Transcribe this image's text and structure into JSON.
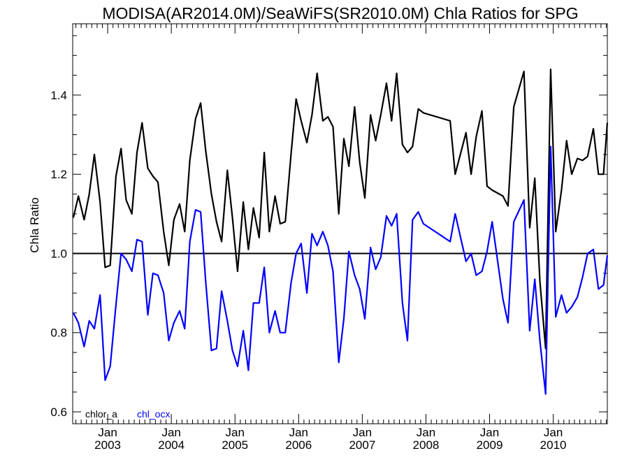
{
  "chart_data": {
    "type": "line",
    "title": "MODISA(AR2014.0M)/SeaWiFS(SR2010.0M)  Chla Ratios for SPG",
    "ylabel": "Chla Ratio",
    "xlabel": "",
    "xlim": [
      2002.45,
      2010.85
    ],
    "ylim": [
      0.57,
      1.58
    ],
    "yticks": [
      0.6,
      0.8,
      1.0,
      1.2,
      1.4
    ],
    "ytick_labels": [
      "0.6",
      "0.8",
      "1.0",
      "1.2",
      "1.4"
    ],
    "x_minor_ticks": "monthly",
    "x_major_ticks": [
      {
        "x": 2003.0,
        "label_top": "Jan",
        "label_bottom": "2003"
      },
      {
        "x": 2004.0,
        "label_top": "Jan",
        "label_bottom": "2004"
      },
      {
        "x": 2005.0,
        "label_top": "Jan",
        "label_bottom": "2005"
      },
      {
        "x": 2006.0,
        "label_top": "Jan",
        "label_bottom": "2006"
      },
      {
        "x": 2007.0,
        "label_top": "Jan",
        "label_bottom": "2007"
      },
      {
        "x": 2008.0,
        "label_top": "Jan",
        "label_bottom": "2008"
      },
      {
        "x": 2009.0,
        "label_top": "Jan",
        "label_bottom": "2009"
      },
      {
        "x": 2010.0,
        "label_top": "Jan",
        "label_bottom": "2010"
      }
    ],
    "reference_line": {
      "y": 1.0,
      "color": "#000000"
    },
    "legend_position": "bottom-left",
    "grid": false,
    "series": [
      {
        "name": "chlor_a",
        "color": "#000000",
        "x": [
          2002.46,
          2002.54,
          2002.63,
          2002.71,
          2002.79,
          2002.88,
          2002.96,
          2003.04,
          2003.13,
          2003.21,
          2003.29,
          2003.38,
          2003.46,
          2003.54,
          2003.63,
          2003.71,
          2003.79,
          2003.88,
          2003.96,
          2004.04,
          2004.13,
          2004.21,
          2004.29,
          2004.38,
          2004.46,
          2004.54,
          2004.63,
          2004.71,
          2004.79,
          2004.88,
          2004.96,
          2005.04,
          2005.13,
          2005.21,
          2005.29,
          2005.38,
          2005.46,
          2005.54,
          2005.63,
          2005.71,
          2005.79,
          2005.88,
          2005.96,
          2006.04,
          2006.13,
          2006.21,
          2006.29,
          2006.38,
          2006.46,
          2006.54,
          2006.63,
          2006.71,
          2006.79,
          2006.88,
          2006.96,
          2007.04,
          2007.13,
          2007.21,
          2007.29,
          2007.38,
          2007.46,
          2007.54,
          2007.63,
          2007.71,
          2007.79,
          2007.88,
          2007.96,
          2008.38,
          2008.46,
          2008.63,
          2008.71,
          2008.79,
          2008.88,
          2008.96,
          2009.04,
          2009.21,
          2009.29,
          2009.38,
          2009.54,
          2009.63,
          2009.71,
          2009.79,
          2009.88,
          2009.96,
          2010.04,
          2010.13,
          2010.21,
          2010.29,
          2010.38,
          2010.46,
          2010.54,
          2010.63,
          2010.71,
          2010.79,
          2010.85
        ],
        "values": [
          1.09,
          1.145,
          1.085,
          1.15,
          1.25,
          1.13,
          0.965,
          0.97,
          1.195,
          1.265,
          1.135,
          1.1,
          1.255,
          1.33,
          1.215,
          1.195,
          1.18,
          1.055,
          0.97,
          1.085,
          1.125,
          1.055,
          1.235,
          1.34,
          1.38,
          1.26,
          1.15,
          1.08,
          1.03,
          1.21,
          1.09,
          0.955,
          1.13,
          1.01,
          1.115,
          1.04,
          1.255,
          1.055,
          1.145,
          1.075,
          1.08,
          1.25,
          1.39,
          1.335,
          1.28,
          1.35,
          1.455,
          1.335,
          1.345,
          1.32,
          1.1,
          1.29,
          1.22,
          1.37,
          1.23,
          1.14,
          1.35,
          1.285,
          1.35,
          1.43,
          1.335,
          1.455,
          1.275,
          1.255,
          1.27,
          1.365,
          1.355,
          1.335,
          1.2,
          1.305,
          1.2,
          1.295,
          1.36,
          1.17,
          1.16,
          1.145,
          1.12,
          1.37,
          1.46,
          1.065,
          1.19,
          0.93,
          0.76,
          1.465,
          1.055,
          1.16,
          1.285,
          1.2,
          1.24,
          1.235,
          1.245,
          1.315,
          1.2,
          1.2,
          1.33
        ]
      },
      {
        "name": "chl_ocx",
        "color": "#0000ff",
        "x": [
          2002.46,
          2002.54,
          2002.63,
          2002.71,
          2002.79,
          2002.88,
          2002.96,
          2003.04,
          2003.13,
          2003.21,
          2003.29,
          2003.38,
          2003.46,
          2003.54,
          2003.63,
          2003.71,
          2003.79,
          2003.88,
          2003.96,
          2004.04,
          2004.13,
          2004.21,
          2004.29,
          2004.38,
          2004.46,
          2004.54,
          2004.63,
          2004.71,
          2004.79,
          2004.88,
          2004.96,
          2005.04,
          2005.13,
          2005.21,
          2005.29,
          2005.38,
          2005.46,
          2005.54,
          2005.63,
          2005.71,
          2005.79,
          2005.88,
          2005.96,
          2006.04,
          2006.13,
          2006.21,
          2006.29,
          2006.38,
          2006.46,
          2006.54,
          2006.63,
          2006.71,
          2006.79,
          2006.88,
          2006.96,
          2007.04,
          2007.13,
          2007.21,
          2007.29,
          2007.38,
          2007.46,
          2007.54,
          2007.63,
          2007.71,
          2007.79,
          2007.88,
          2007.96,
          2008.38,
          2008.46,
          2008.63,
          2008.71,
          2008.79,
          2008.88,
          2008.96,
          2009.04,
          2009.21,
          2009.29,
          2009.38,
          2009.54,
          2009.63,
          2009.71,
          2009.79,
          2009.88,
          2009.96,
          2010.04,
          2010.13,
          2010.21,
          2010.29,
          2010.38,
          2010.46,
          2010.54,
          2010.63,
          2010.71,
          2010.79,
          2010.85
        ],
        "values": [
          0.85,
          0.825,
          0.765,
          0.83,
          0.81,
          0.895,
          0.68,
          0.715,
          0.87,
          1.0,
          0.985,
          0.955,
          1.035,
          1.03,
          0.845,
          0.95,
          0.945,
          0.9,
          0.78,
          0.825,
          0.855,
          0.81,
          1.03,
          1.11,
          1.105,
          0.93,
          0.755,
          0.76,
          0.905,
          0.83,
          0.755,
          0.715,
          0.805,
          0.705,
          0.875,
          0.875,
          0.965,
          0.8,
          0.855,
          0.8,
          0.8,
          0.925,
          1.0,
          1.025,
          0.9,
          1.05,
          1.02,
          1.055,
          1.02,
          0.955,
          0.725,
          0.835,
          1.005,
          0.945,
          0.91,
          0.835,
          1.015,
          0.96,
          0.99,
          1.095,
          1.07,
          1.1,
          0.875,
          0.78,
          1.085,
          1.105,
          1.075,
          1.03,
          1.1,
          0.98,
          1.0,
          0.945,
          0.955,
          1.005,
          1.08,
          0.885,
          0.825,
          1.08,
          1.135,
          0.805,
          0.935,
          0.78,
          0.645,
          1.27,
          0.84,
          0.895,
          0.85,
          0.865,
          0.89,
          0.94,
          1.0,
          1.01,
          0.91,
          0.92,
          0.995
        ]
      }
    ]
  }
}
